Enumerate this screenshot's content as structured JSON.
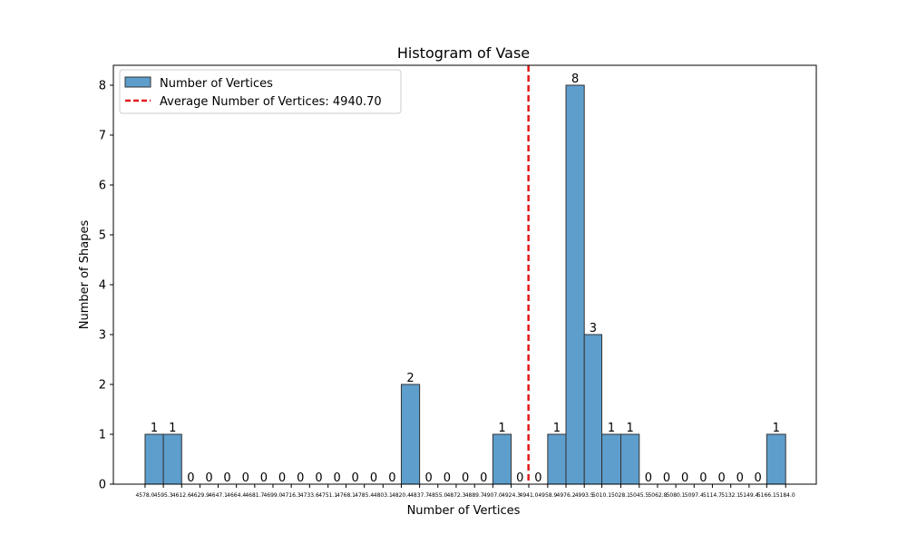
{
  "chart_data": {
    "type": "bar",
    "title": "Histogram of Vase",
    "xlabel": "Number of Vertices",
    "ylabel": "Number of Shapes",
    "ylim": [
      0,
      8.4
    ],
    "yticks": [
      0,
      1,
      2,
      3,
      4,
      5,
      6,
      7,
      8
    ],
    "bin_edges": [
      4578.0,
      4595.3,
      4612.6,
      4629.9,
      4647.1,
      4664.4,
      4681.7,
      4699.0,
      4716.3,
      4733.6,
      4751.1,
      4768.1,
      4785.4,
      4803.1,
      4820.4,
      4837.7,
      4855.0,
      4872.3,
      4889.7,
      4907.0,
      4924.3,
      4941.0,
      4958.9,
      4976.2,
      4993.5,
      5010.1,
      5028.1,
      5045.5,
      5062.8,
      5080.1,
      5097.4,
      5114.7,
      5132.1,
      5149.4,
      5166.1,
      5184.0
    ],
    "tick_labels": [
      "4578.0",
      "4595.3",
      "4612.6",
      "4629.9",
      "4647.1",
      "4664.4",
      "4681.7",
      "4699.0",
      "4716.3",
      "4733.6",
      "4751.1",
      "4768.1",
      "4785.4",
      "4803.1",
      "4820.4",
      "4837.7",
      "4855.0",
      "4872.3",
      "4889.7",
      "4907.0",
      "4924.3",
      "4941.0",
      "4958.9",
      "4976.2",
      "4993.5",
      "5010.1",
      "5028.1",
      "5045.5",
      "5062.8",
      "5080.1",
      "5097.4",
      "5114.7",
      "5132.1",
      "5149.4",
      "5166.1",
      "5184.0"
    ],
    "counts": [
      1,
      1,
      0,
      0,
      0,
      0,
      0,
      0,
      0,
      0,
      0,
      0,
      0,
      0,
      2,
      0,
      0,
      0,
      0,
      1,
      0,
      0,
      1,
      8,
      3,
      1,
      1,
      0,
      0,
      0,
      0,
      0,
      0,
      0,
      1
    ],
    "average": 4940.7,
    "legend": {
      "placement": "upper-left",
      "entries": [
        "Number of Vertices",
        "Average Number of Vertices: 4940.70"
      ]
    },
    "colors": {
      "bar": "#5d9ecd",
      "bar_edge": "#333333",
      "mean_line": "#e31a1c"
    }
  }
}
